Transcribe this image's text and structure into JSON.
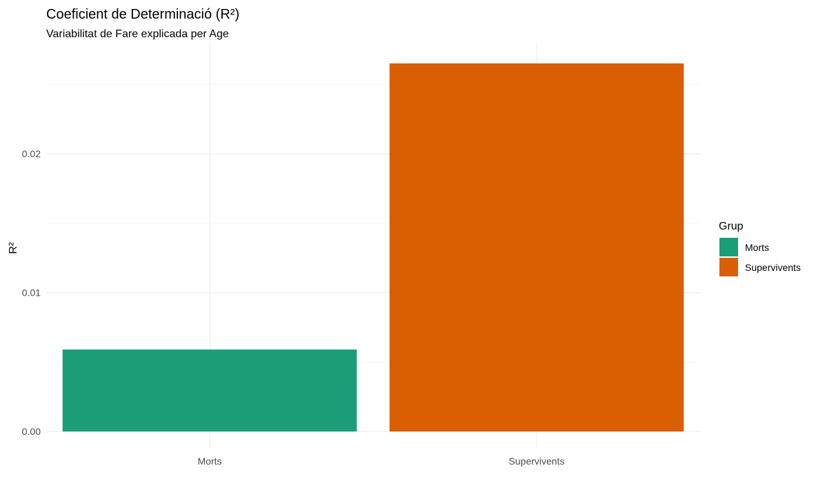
{
  "chart_data": {
    "type": "bar",
    "title": "Coeficient de Determinació (R²)",
    "subtitle": "Variabilitat de Fare explicada per Age",
    "xlabel": "",
    "ylabel": "R²",
    "categories": [
      "Morts",
      "Supervivents"
    ],
    "values": [
      0.0059,
      0.0265
    ],
    "colors": [
      "#1b9e77",
      "#d95f02"
    ],
    "ylim": [
      0,
      0.0265
    ],
    "yticks": [
      0.0,
      0.01,
      0.02
    ],
    "ytick_labels": [
      "0.00",
      "0.01",
      "0.02"
    ],
    "grid": true,
    "legend": {
      "title": "Grup",
      "position": "right",
      "entries": [
        "Morts",
        "Supervivents"
      ]
    }
  }
}
